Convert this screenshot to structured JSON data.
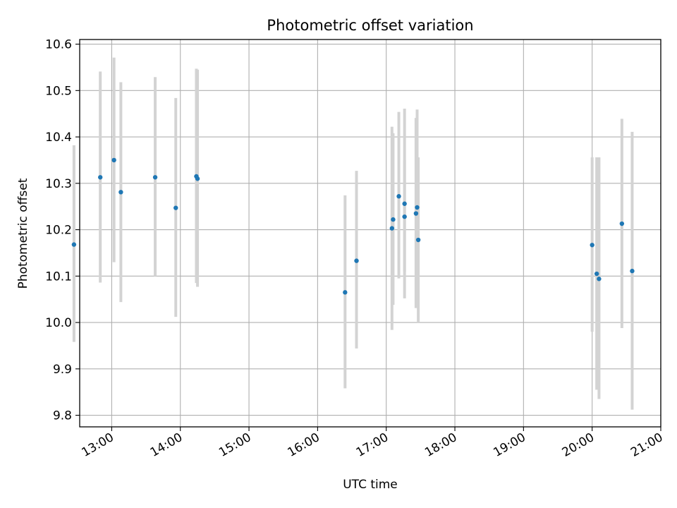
{
  "chart_data": {
    "type": "scatter",
    "title": "Photometric offset variation",
    "xlabel": "UTC time",
    "ylabel": "Photometric offset",
    "grid": true,
    "xlim": [
      "12:32",
      "21:00"
    ],
    "ylim": [
      9.775,
      10.61
    ],
    "x_ticks": [
      "13:00",
      "14:00",
      "15:00",
      "16:00",
      "17:00",
      "18:00",
      "19:00",
      "20:00",
      "21:00"
    ],
    "y_ticks": [
      "9.8",
      "9.9",
      "10.0",
      "10.1",
      "10.2",
      "10.3",
      "10.4",
      "10.5",
      "10.6"
    ],
    "colors": {
      "points": "#1f77b4",
      "errorbars": "#d3d3d3",
      "grid": "#b0b0b0"
    },
    "series": [
      {
        "points": [
          {
            "t": "12:27",
            "y": 10.168,
            "low": 9.958,
            "high": 10.382
          },
          {
            "t": "12:50",
            "y": 10.313,
            "low": 10.086,
            "high": 10.541
          },
          {
            "t": "13:02",
            "y": 10.35,
            "low": 10.13,
            "high": 10.571
          },
          {
            "t": "13:08",
            "y": 10.281,
            "low": 10.044,
            "high": 10.518
          },
          {
            "t": "13:38",
            "y": 10.313,
            "low": 10.1,
            "high": 10.529
          },
          {
            "t": "13:56",
            "y": 10.247,
            "low": 10.012,
            "high": 10.484
          },
          {
            "t": "14:14",
            "y": 10.315,
            "low": 10.085,
            "high": 10.547
          },
          {
            "t": "14:15",
            "y": 10.31,
            "low": 10.077,
            "high": 10.545
          },
          {
            "t": "16:24",
            "y": 10.065,
            "low": 9.858,
            "high": 10.274
          },
          {
            "t": "16:34",
            "y": 10.133,
            "low": 9.944,
            "high": 10.327
          },
          {
            "t": "17:05",
            "y": 10.203,
            "low": 9.984,
            "high": 10.422
          },
          {
            "t": "17:06",
            "y": 10.222,
            "low": 10.038,
            "high": 10.408
          },
          {
            "t": "17:11",
            "y": 10.272,
            "low": 10.095,
            "high": 10.454
          },
          {
            "t": "17:16",
            "y": 10.256,
            "low": 10.052,
            "high": 10.461
          },
          {
            "t": "17:16",
            "y": 10.228,
            "low": 10.11,
            "high": 10.35
          },
          {
            "t": "17:26",
            "y": 10.235,
            "low": 10.031,
            "high": 10.441
          },
          {
            "t": "17:27",
            "y": 10.248,
            "low": 10.04,
            "high": 10.459
          },
          {
            "t": "17:28",
            "y": 10.178,
            "low": 10.0,
            "high": 10.356
          },
          {
            "t": "20:00",
            "y": 10.167,
            "low": 9.98,
            "high": 10.356
          },
          {
            "t": "20:04",
            "y": 10.105,
            "low": 9.855,
            "high": 10.356
          },
          {
            "t": "20:06",
            "y": 10.094,
            "low": 9.835,
            "high": 10.356
          },
          {
            "t": "20:26",
            "y": 10.213,
            "low": 9.988,
            "high": 10.439
          },
          {
            "t": "20:35",
            "y": 10.111,
            "low": 9.812,
            "high": 10.411
          }
        ]
      }
    ]
  }
}
